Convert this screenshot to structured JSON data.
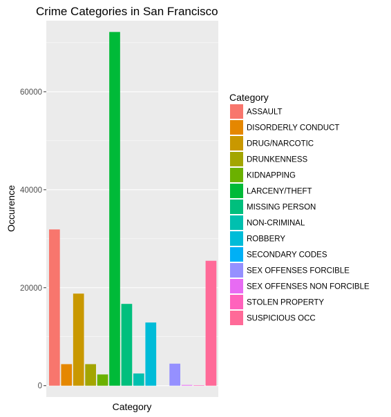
{
  "chart_data": {
    "type": "bar",
    "title": "Crime Categories in San Francisco",
    "xlabel": "Category",
    "ylabel": "Occurence",
    "ylim": [
      -2300,
      74500
    ],
    "yticks": [
      0,
      20000,
      40000,
      60000
    ],
    "ytick_labels": [
      "0",
      "20000",
      "40000",
      "60000"
    ],
    "grid": true,
    "legend_title": "Category",
    "legend_position": "right",
    "categories": [
      "ASSAULT",
      "DISORDERLY CONDUCT",
      "DRUG/NARCOTIC",
      "DRUNKENNESS",
      "KIDNAPPING",
      "LARCENY/THEFT",
      "MISSING PERSON",
      "NON-CRIMINAL",
      "ROBBERY",
      "SECONDARY CODES",
      "SEX OFFENSES FORCIBLE",
      "SEX OFFENSES NON FORCIBLE",
      "STOLEN PROPERTY",
      "SUSPICIOUS OCC"
    ],
    "values": [
      31900,
      4400,
      18800,
      4400,
      2300,
      72200,
      16700,
      2500,
      12900,
      0,
      4500,
      150,
      100,
      25500
    ],
    "colors": [
      "#F8766D",
      "#E58700",
      "#C99800",
      "#A3A500",
      "#6BB100",
      "#00BA38",
      "#00BF7D",
      "#00C0AF",
      "#00BCD8",
      "#00B0F6",
      "#9590FF",
      "#E76BF3",
      "#FF62BC",
      "#FF6A98"
    ]
  }
}
